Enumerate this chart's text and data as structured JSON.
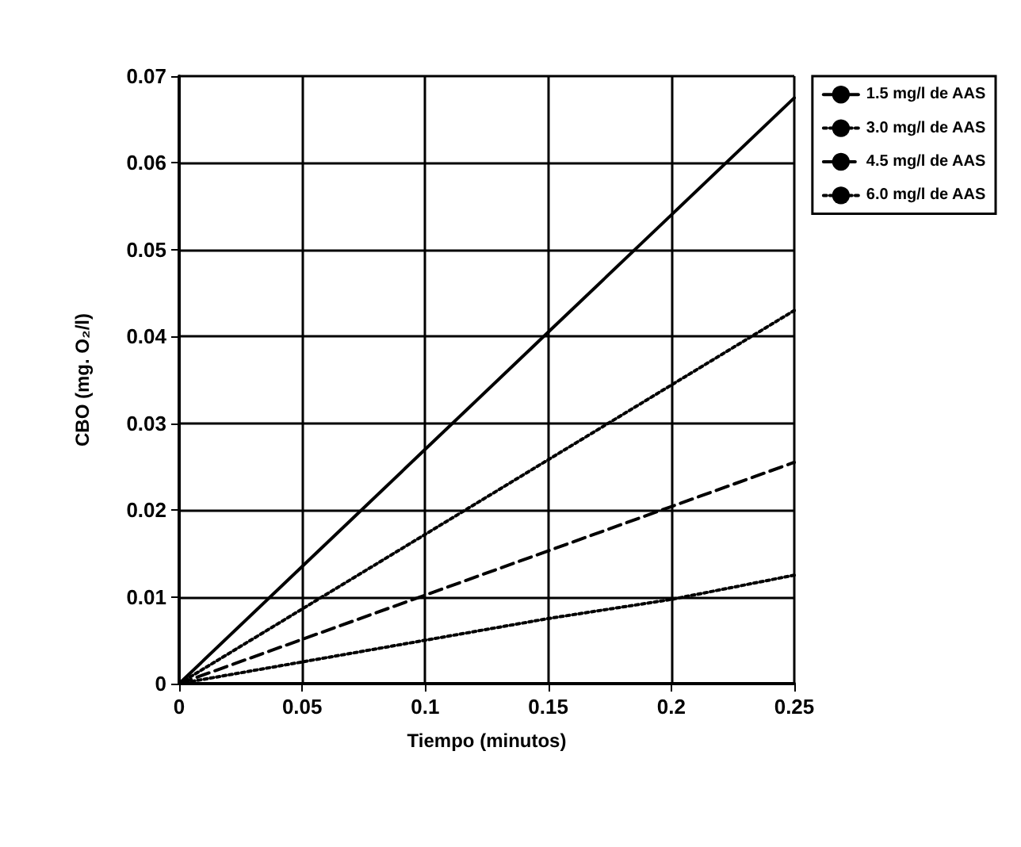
{
  "chart_data": {
    "type": "line",
    "xlabel": "Tiempo (minutos)",
    "ylabel": "CBO (mg. O₂/l)",
    "x": [
      0,
      0.05,
      0.1,
      0.15,
      0.2,
      0.25
    ],
    "series": [
      {
        "name": "1.5 mg/l de AAS",
        "color": "#000000",
        "line_style": "solid",
        "values": [
          0,
          0.0135,
          0.027,
          0.0405,
          0.054,
          0.0675
        ]
      },
      {
        "name": "3.0 mg/l de AAS",
        "color": "#000000",
        "line_style": "dotted",
        "values": [
          0,
          0.0086,
          0.0172,
          0.0258,
          0.0344,
          0.043
        ]
      },
      {
        "name": "4.5 mg/l de AAS",
        "color": "#000000",
        "line_style": "dashed",
        "values": [
          0,
          0.0051,
          0.0102,
          0.0153,
          0.0204,
          0.0255
        ]
      },
      {
        "name": "6.0 mg/l de AAS",
        "color": "#000000",
        "line_style": "dotted",
        "values": [
          0,
          0.0025,
          0.005,
          0.0075,
          0.0097,
          0.0125
        ]
      }
    ],
    "xlim": [
      0,
      0.25
    ],
    "xticks": [
      0,
      0.05,
      0.1,
      0.15,
      0.2,
      0.25
    ],
    "ylim": [
      0,
      0.07
    ],
    "yticks": [
      0,
      0.01,
      0.02,
      0.03,
      0.04,
      0.05,
      0.06,
      0.07
    ],
    "grid": true,
    "legend": "top right",
    "marker": "none"
  }
}
